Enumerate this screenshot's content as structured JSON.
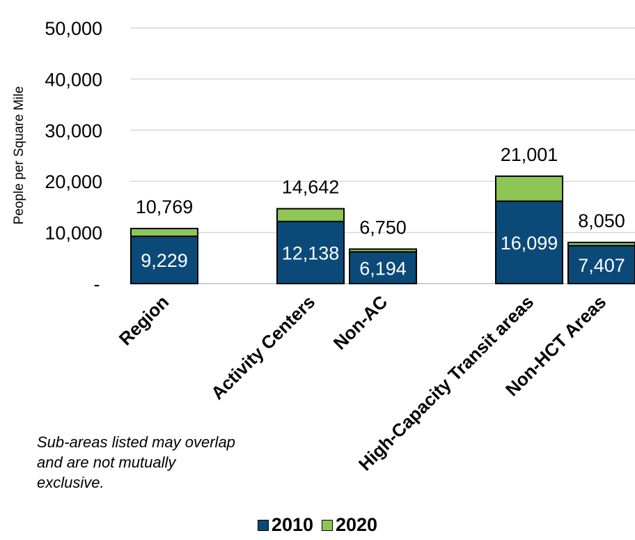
{
  "chart_data": {
    "type": "bar",
    "stacked": true,
    "categories": [
      "Region",
      "Activity Centers",
      "Non-AC",
      "High-Capacity Transit areas",
      "Non-HCT Areas"
    ],
    "series": [
      {
        "name": "2010",
        "values": [
          9229,
          12138,
          6194,
          16099,
          7407
        ],
        "labels": [
          "9,229",
          "12,138",
          "6,194",
          "16,099",
          "7,407"
        ]
      },
      {
        "name": "2020",
        "values": [
          1540,
          2504,
          556,
          4902,
          643
        ]
      }
    ],
    "totals": [
      10769,
      14642,
      6750,
      21001,
      8050
    ],
    "total_labels": [
      "10,769",
      "14,642",
      "6,750",
      "21,001",
      "8,050"
    ],
    "ylabel": "People per Square Mile",
    "ylim": [
      0,
      50000
    ],
    "yticks": [
      0,
      10000,
      20000,
      30000,
      40000,
      50000
    ],
    "ytick_labels": [
      "-",
      "10,000",
      "20,000",
      "30,000",
      "40,000",
      "50,000"
    ],
    "grid": true,
    "legend_position": "bottom",
    "colors": {
      "2010": "#0b4a78",
      "2020": "#8dc657",
      "grid": "#d9d9d9",
      "outline": "#000000"
    }
  },
  "note": "Sub-areas listed may overlap and are not mutually exclusive.",
  "legend": {
    "items": [
      {
        "label": "2010",
        "color": "#0b4a78"
      },
      {
        "label": "2020",
        "color": "#8dc657"
      }
    ]
  }
}
